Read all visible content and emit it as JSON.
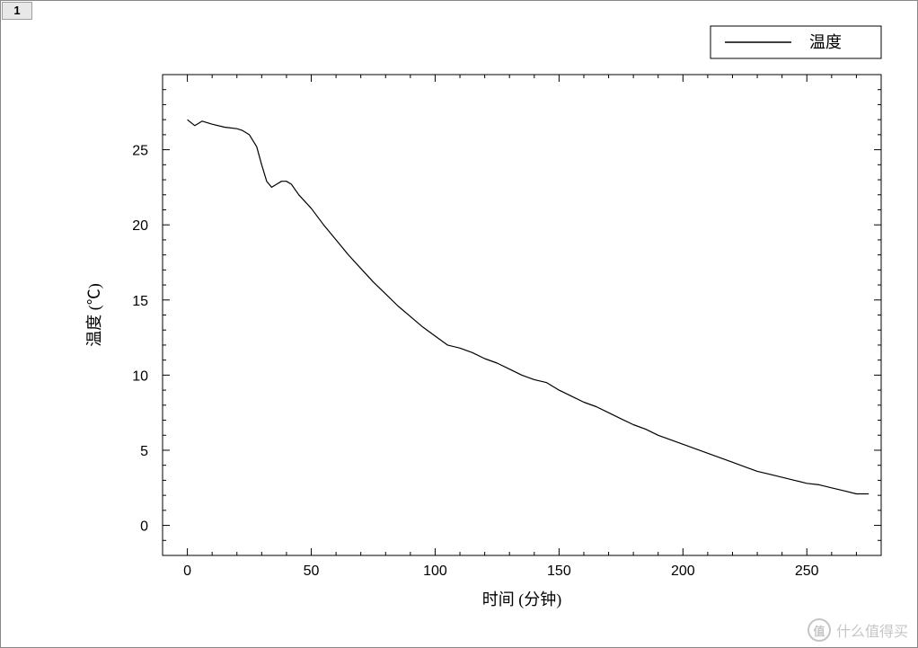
{
  "tab": {
    "label": "1"
  },
  "chart": {
    "type": "line",
    "background_color": "#ffffff",
    "plot_border_color": "#000000",
    "plot_border_width": 1,
    "axis_tick_length_major": 8,
    "axis_tick_length_minor": 4,
    "x": {
      "label": "时间 (分钟)",
      "lim": [
        -10,
        280
      ],
      "ticks": [
        0,
        50,
        100,
        150,
        200,
        250
      ],
      "minor_step": 10,
      "label_fontsize": 18,
      "tick_fontsize": 16
    },
    "y": {
      "label": "温度 (℃)",
      "lim": [
        -2,
        30
      ],
      "ticks": [
        0,
        5,
        10,
        15,
        20,
        25
      ],
      "minor_step": 1,
      "label_fontsize": 18,
      "tick_fontsize": 16
    },
    "legend": {
      "label": "温度",
      "line_color": "#000000",
      "border_color": "#000000",
      "background_color": "#ffffff",
      "fontsize": 18,
      "position": "top-right-outside"
    },
    "series": {
      "color": "#000000",
      "line_width": 1.2,
      "points": [
        {
          "x": 0,
          "y": 27.0
        },
        {
          "x": 3,
          "y": 26.6
        },
        {
          "x": 6,
          "y": 26.9
        },
        {
          "x": 10,
          "y": 26.7
        },
        {
          "x": 15,
          "y": 26.5
        },
        {
          "x": 20,
          "y": 26.4
        },
        {
          "x": 22,
          "y": 26.3
        },
        {
          "x": 25,
          "y": 26.0
        },
        {
          "x": 28,
          "y": 25.2
        },
        {
          "x": 30,
          "y": 24.0
        },
        {
          "x": 32,
          "y": 22.9
        },
        {
          "x": 34,
          "y": 22.5
        },
        {
          "x": 36,
          "y": 22.7
        },
        {
          "x": 38,
          "y": 22.9
        },
        {
          "x": 40,
          "y": 22.9
        },
        {
          "x": 42,
          "y": 22.7
        },
        {
          "x": 45,
          "y": 22.0
        },
        {
          "x": 50,
          "y": 21.1
        },
        {
          "x": 55,
          "y": 20.0
        },
        {
          "x": 60,
          "y": 19.0
        },
        {
          "x": 65,
          "y": 18.0
        },
        {
          "x": 70,
          "y": 17.1
        },
        {
          "x": 75,
          "y": 16.2
        },
        {
          "x": 80,
          "y": 15.4
        },
        {
          "x": 85,
          "y": 14.6
        },
        {
          "x": 90,
          "y": 13.9
        },
        {
          "x": 95,
          "y": 13.2
        },
        {
          "x": 100,
          "y": 12.6
        },
        {
          "x": 105,
          "y": 12.0
        },
        {
          "x": 110,
          "y": 11.8
        },
        {
          "x": 115,
          "y": 11.5
        },
        {
          "x": 120,
          "y": 11.1
        },
        {
          "x": 125,
          "y": 10.8
        },
        {
          "x": 130,
          "y": 10.4
        },
        {
          "x": 135,
          "y": 10.0
        },
        {
          "x": 140,
          "y": 9.7
        },
        {
          "x": 145,
          "y": 9.5
        },
        {
          "x": 150,
          "y": 9.0
        },
        {
          "x": 155,
          "y": 8.6
        },
        {
          "x": 160,
          "y": 8.2
        },
        {
          "x": 165,
          "y": 7.9
        },
        {
          "x": 170,
          "y": 7.5
        },
        {
          "x": 175,
          "y": 7.1
        },
        {
          "x": 180,
          "y": 6.7
        },
        {
          "x": 185,
          "y": 6.4
        },
        {
          "x": 190,
          "y": 6.0
        },
        {
          "x": 195,
          "y": 5.7
        },
        {
          "x": 200,
          "y": 5.4
        },
        {
          "x": 205,
          "y": 5.1
        },
        {
          "x": 210,
          "y": 4.8
        },
        {
          "x": 215,
          "y": 4.5
        },
        {
          "x": 220,
          "y": 4.2
        },
        {
          "x": 225,
          "y": 3.9
        },
        {
          "x": 230,
          "y": 3.6
        },
        {
          "x": 235,
          "y": 3.4
        },
        {
          "x": 240,
          "y": 3.2
        },
        {
          "x": 245,
          "y": 3.0
        },
        {
          "x": 250,
          "y": 2.8
        },
        {
          "x": 255,
          "y": 2.7
        },
        {
          "x": 260,
          "y": 2.5
        },
        {
          "x": 265,
          "y": 2.3
        },
        {
          "x": 270,
          "y": 2.1
        },
        {
          "x": 275,
          "y": 2.1
        }
      ]
    }
  },
  "watermark": {
    "logo": "值",
    "text": "什么值得买"
  }
}
